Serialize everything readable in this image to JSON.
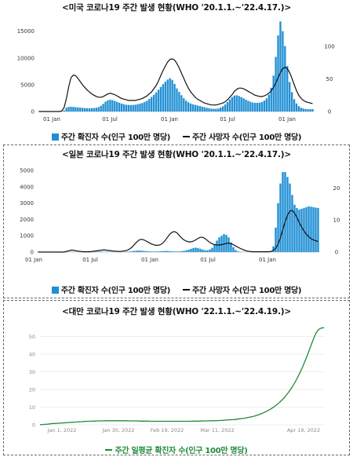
{
  "colors": {
    "bar": "#1f8fd4",
    "line": "#111111",
    "green": "#1f8a3a",
    "grid": "#dddddd"
  },
  "chart_data": [
    {
      "type": "bar",
      "title": "<미국 코로나19 주간 발생 현황(WHO '20.1.1.~'22.4.17.)>",
      "legend_bar": "주간 확진자 수(인구 100만 명당)",
      "legend_line": "주간 사망자 수(인구 100만 명당)",
      "x_ticks": [
        "01 Jan",
        "01 Jul",
        "01 Jan",
        "01 Jul",
        "01 Jan"
      ],
      "y_ticks_left": [
        "0",
        "5000",
        "10000",
        "15000"
      ],
      "y_ticks_right": [
        "0",
        "50",
        "100"
      ],
      "ylim_left": [
        0,
        17000
      ],
      "ylim_right": [
        0,
        140
      ],
      "weeks": 120,
      "series": [
        {
          "kind": "bar",
          "values": [
            0,
            0,
            0,
            0,
            0,
            0,
            0,
            0,
            0,
            0,
            20,
            200,
            700,
            860,
            900,
            860,
            800,
            770,
            720,
            680,
            640,
            620,
            600,
            620,
            650,
            720,
            820,
            1060,
            1420,
            1830,
            2070,
            2190,
            2120,
            1980,
            1800,
            1630,
            1470,
            1340,
            1250,
            1220,
            1200,
            1230,
            1280,
            1360,
            1460,
            1590,
            1780,
            2010,
            2350,
            2720,
            3130,
            3560,
            4060,
            4570,
            5100,
            5560,
            5950,
            6200,
            5900,
            5150,
            4300,
            3650,
            3040,
            2480,
            2030,
            1710,
            1490,
            1330,
            1230,
            1120,
            1020,
            910,
            800,
            690,
            600,
            530,
            500,
            510,
            560,
            730,
            960,
            1300,
            1750,
            2240,
            2670,
            2960,
            3030,
            2900,
            2690,
            2460,
            2210,
            1990,
            1810,
            1680,
            1610,
            1610,
            1660,
            1780,
            2030,
            2450,
            3130,
            4430,
            6700,
            10200,
            14200,
            16800,
            15000,
            12200,
            8500,
            5500,
            3600,
            2300,
            1500,
            1000,
            700,
            550,
            460,
            430,
            420,
            450
          ]
        },
        {
          "kind": "line",
          "values": [
            0,
            0,
            0,
            0,
            0,
            0,
            0,
            0,
            0,
            0,
            1,
            6,
            20,
            38,
            52,
            56,
            55,
            51,
            46,
            41,
            37,
            33,
            30,
            27,
            25,
            23,
            22,
            22,
            23,
            25,
            27,
            28,
            27,
            26,
            24,
            22,
            20,
            19,
            18,
            17,
            17,
            17,
            17,
            18,
            19,
            20,
            22,
            24,
            27,
            30,
            35,
            40,
            47,
            55,
            63,
            70,
            76,
            80,
            81,
            79,
            74,
            67,
            59,
            51,
            43,
            36,
            30,
            26,
            22,
            19,
            17,
            15,
            13,
            12,
            11,
            10,
            10,
            10,
            11,
            12,
            13,
            15,
            18,
            22,
            26,
            31,
            34,
            36,
            36,
            35,
            33,
            31,
            29,
            27,
            25,
            24,
            23,
            23,
            24,
            26,
            28,
            32,
            37,
            44,
            52,
            60,
            66,
            68,
            66,
            60,
            51,
            41,
            32,
            25,
            20,
            17,
            15,
            14,
            13,
            12
          ]
        }
      ]
    },
    {
      "type": "bar",
      "title": "<일본 코로나19 주간 발생 현황(WHO '20.1.1.~'22.4.17.)>",
      "legend_bar": "주간 확진자 수(인구 100만 명당)",
      "legend_line": "주간 사망자 수(인구 100만 명당)",
      "x_ticks": [
        "01 Jan",
        "01 Jul",
        "01 Jan",
        "01 Jul",
        "01 Jan"
      ],
      "y_ticks_left": [
        "0",
        "1000",
        "2000",
        "3000",
        "4000",
        "5000"
      ],
      "y_ticks_right": [
        "0",
        "10",
        "20"
      ],
      "ylim_left": [
        0,
        5100
      ],
      "ylim_right": [
        0,
        26
      ],
      "weeks": 120,
      "series": [
        {
          "kind": "bar",
          "values": [
            0,
            0,
            0,
            0,
            0,
            0,
            0,
            0,
            0,
            0,
            0,
            2,
            4,
            8,
            10,
            8,
            5,
            2,
            1,
            1,
            1,
            2,
            4,
            10,
            20,
            28,
            30,
            26,
            20,
            14,
            10,
            8,
            6,
            5,
            5,
            6,
            8,
            12,
            20,
            35,
            55,
            75,
            88,
            92,
            85,
            70,
            55,
            45,
            38,
            34,
            36,
            40,
            50,
            60,
            70,
            65,
            55,
            45,
            38,
            35,
            40,
            52,
            75,
            110,
            150,
            200,
            250,
            270,
            250,
            200,
            150,
            110,
            110,
            160,
            260,
            500,
            700,
            900,
            1000,
            1100,
            1050,
            900,
            600,
            300,
            120,
            40,
            15,
            8,
            5,
            4,
            4,
            4,
            5,
            5,
            5,
            6,
            8,
            10,
            20,
            60,
            350,
            1500,
            3000,
            4200,
            4900,
            4900,
            4600,
            4200,
            3500,
            2900,
            2700,
            2600,
            2650,
            2700,
            2750,
            2800,
            2780,
            2750,
            2720,
            2700
          ]
        },
        {
          "kind": "line",
          "values": [
            0,
            0,
            0,
            0,
            0,
            0,
            0,
            0,
            0,
            0,
            0,
            0,
            0.2,
            0.4,
            0.6,
            0.6,
            0.4,
            0.3,
            0.2,
            0.1,
            0.1,
            0.1,
            0.1,
            0.2,
            0.3,
            0.4,
            0.5,
            0.6,
            0.7,
            0.6,
            0.5,
            0.4,
            0.3,
            0.3,
            0.2,
            0.2,
            0.3,
            0.4,
            0.6,
            1.0,
            1.6,
            2.4,
            3.2,
            3.8,
            4.0,
            3.8,
            3.4,
            3.0,
            2.6,
            2.3,
            2.1,
            2.1,
            2.3,
            2.8,
            3.6,
            4.6,
            5.6,
            6.2,
            6.4,
            6.0,
            5.2,
            4.4,
            3.8,
            3.4,
            3.2,
            3.2,
            3.4,
            3.8,
            4.3,
            4.6,
            4.6,
            4.2,
            3.6,
            3.0,
            2.6,
            2.3,
            2.2,
            2.2,
            2.3,
            2.5,
            2.7,
            2.8,
            2.6,
            2.3,
            1.9,
            1.5,
            1.1,
            0.8,
            0.5,
            0.3,
            0.2,
            0.1,
            0.1,
            0.1,
            0.1,
            0.1,
            0.1,
            0.1,
            0.1,
            0.2,
            0.5,
            1.2,
            2.5,
            4.5,
            7.0,
            9.5,
            11.5,
            12.8,
            13.0,
            12.2,
            10.8,
            9.2,
            7.8,
            6.6,
            5.6,
            4.8,
            4.2,
            3.8,
            3.5,
            3.3
          ]
        }
      ]
    },
    {
      "type": "line",
      "title": "<대만 코로나19 주간 발생 현황(WHO '22.1.1.~'22.4.19.)>",
      "legend_line": "주간 일평균 확진자 수(인구 100만 명당)",
      "x_ticks": [
        "Jan 1, 2022",
        "Jan 30, 2022",
        "Feb 19, 2022",
        "Mar 11, 2022",
        "Apr 19, 2022"
      ],
      "y_ticks": [
        "0",
        "10",
        "20",
        "30",
        "40",
        "50"
      ],
      "ylim": [
        0,
        56
      ],
      "days": 109,
      "series": [
        {
          "kind": "line",
          "values": [
            0.1,
            0.2,
            0.3,
            0.4,
            0.6,
            0.7,
            0.8,
            0.9,
            1.0,
            1.1,
            1.2,
            1.3,
            1.4,
            1.5,
            1.6,
            1.7,
            1.8,
            1.9,
            2.0,
            2.0,
            2.1,
            2.1,
            2.2,
            2.2,
            2.2,
            2.3,
            2.3,
            2.3,
            2.3,
            2.3,
            2.3,
            2.3,
            2.3,
            2.3,
            2.2,
            2.2,
            2.2,
            2.2,
            2.1,
            2.1,
            2.1,
            2.1,
            2.0,
            2.0,
            2.0,
            2.0,
            2.0,
            2.0,
            2.0,
            2.0,
            2.0,
            2.0,
            2.0,
            2.0,
            2.0,
            2.0,
            2.0,
            2.0,
            2.1,
            2.1,
            2.1,
            2.1,
            2.2,
            2.2,
            2.2,
            2.3,
            2.3,
            2.4,
            2.4,
            2.5,
            2.6,
            2.7,
            2.8,
            2.9,
            3.0,
            3.2,
            3.4,
            3.6,
            3.8,
            4.1,
            4.4,
            4.7,
            5.1,
            5.6,
            6.2,
            6.8,
            7.5,
            8.3,
            9.2,
            10.2,
            11.3,
            12.6,
            14.0,
            15.6,
            17.4,
            19.4,
            21.6,
            24.1,
            26.9,
            29.9,
            33.2,
            36.8,
            40.6,
            44.6,
            48.6,
            52.0,
            54.0,
            54.8,
            55.0
          ]
        }
      ]
    }
  ]
}
